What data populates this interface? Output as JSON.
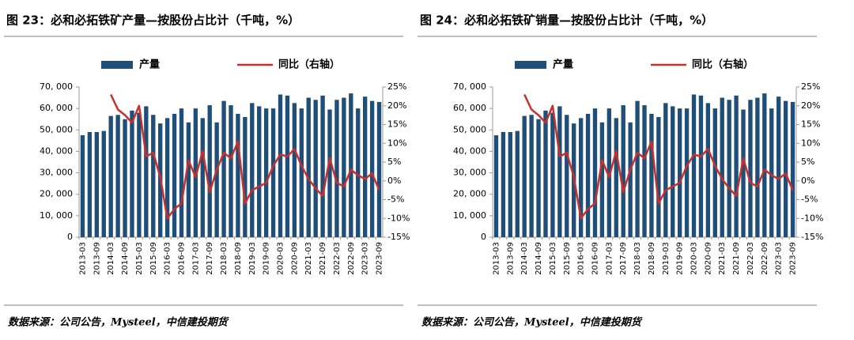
{
  "chart_data": [
    {
      "type": "bar_line",
      "title": "图 23：必和必拓铁矿产量—按股份占比计（千吨，%）",
      "categories": [
        "2013-03",
        null,
        "2013-09",
        null,
        "2014-03",
        null,
        "2014-09",
        null,
        "2015-03",
        null,
        "2015-09",
        null,
        "2016-03",
        null,
        "2016-09",
        null,
        "2017-03",
        null,
        "2017-09",
        null,
        "2018-03",
        null,
        "2018-09",
        null,
        "2019-03",
        null,
        "2019-09",
        null,
        "2020-03",
        null,
        "2020-09",
        null,
        "2021-03",
        null,
        "2021-09",
        null,
        "2022-03",
        null,
        "2022-09",
        null,
        "2023-03",
        null,
        "2023-09"
      ],
      "series": [
        {
          "name": "产量",
          "color": "#1f4e79",
          "values": [
            47500,
            49000,
            49000,
            49500,
            56500,
            57000,
            55000,
            59000,
            58000,
            61000,
            57000,
            53000,
            55500,
            57500,
            60000,
            53500,
            60000,
            55500,
            61500,
            53500,
            63500,
            61500,
            57500,
            56000,
            62500,
            61000,
            60000,
            60000,
            66500,
            66000,
            62500,
            60000,
            65000,
            64000,
            66000,
            59500,
            64000,
            65000,
            67000,
            60000,
            65500,
            63500,
            63000
          ]
        },
        {
          "name": "同比（右轴）",
          "color": "#c8302c",
          "axis": "y2",
          "values": [
            null,
            null,
            null,
            null,
            23,
            19,
            17.5,
            15.5,
            20,
            6.5,
            7.5,
            1,
            -10,
            -7.5,
            -6,
            5.5,
            1,
            8,
            -3,
            3,
            7.5,
            6,
            10.5,
            -6,
            -2.5,
            -1.5,
            -0.5,
            4,
            7,
            6.5,
            8.5,
            4,
            0.5,
            -2,
            -4,
            6,
            -0.5,
            -1.5,
            3,
            1.5,
            0.5,
            2,
            -2.5
          ]
        }
      ],
      "ylim": [
        0,
        70000
      ],
      "yticks": [
        0,
        {
          "value": 10000,
          "label": "10, 000"
        },
        {
          "value": 20000,
          "label": "20, 000"
        },
        {
          "value": 30000,
          "label": "30, 000"
        },
        {
          "value": 40000,
          "label": "40, 000"
        },
        {
          "value": 50000,
          "label": "50, 000"
        },
        {
          "value": 60000,
          "label": "60, 000"
        },
        {
          "value": 70000,
          "label": "70, 000"
        }
      ],
      "y2lim": [
        -15,
        25
      ],
      "y2ticks": [
        {
          "value": -15,
          "label": "-15%"
        },
        {
          "value": -10,
          "label": "-10%"
        },
        {
          "value": -5,
          "label": "-5%"
        },
        {
          "value": 0,
          "label": "0%"
        },
        {
          "value": 5,
          "label": "5%"
        },
        {
          "value": 10,
          "label": "10%"
        },
        {
          "value": 15,
          "label": "15%"
        },
        {
          "value": 20,
          "label": "20%"
        },
        {
          "value": 25,
          "label": "25%"
        }
      ],
      "source": "数据来源：公司公告，Mysteel，中信建投期货"
    },
    {
      "type": "bar_line",
      "title": "图 24：必和必拓铁矿销量—按股份占比计（千吨，%）",
      "categories": [
        "2013-03",
        null,
        "2013-09",
        null,
        "2014-03",
        null,
        "2014-09",
        null,
        "2015-03",
        null,
        "2015-09",
        null,
        "2016-03",
        null,
        "2016-09",
        null,
        "2017-03",
        null,
        "2017-09",
        null,
        "2018-03",
        null,
        "2018-09",
        null,
        "2019-03",
        null,
        "2019-09",
        null,
        "2020-03",
        null,
        "2020-09",
        null,
        "2021-03",
        null,
        "2021-09",
        null,
        "2022-03",
        null,
        "2022-09",
        null,
        "2023-03",
        null,
        "2023-09"
      ],
      "series": [
        {
          "name": "产量",
          "color": "#1f4e79",
          "values": [
            47500,
            49000,
            49000,
            49500,
            56500,
            57000,
            55000,
            59000,
            58000,
            61000,
            57000,
            53000,
            55500,
            57500,
            60000,
            53500,
            60000,
            55500,
            61500,
            53500,
            63500,
            61500,
            57500,
            56000,
            62500,
            61000,
            60000,
            60000,
            66500,
            66000,
            62500,
            60000,
            65000,
            64000,
            66000,
            59500,
            64000,
            65000,
            67000,
            60000,
            65500,
            63500,
            63000
          ]
        },
        {
          "name": "同比（右轴）",
          "color": "#c8302c",
          "axis": "y2",
          "values": [
            null,
            null,
            null,
            null,
            23,
            19,
            17.5,
            15.5,
            20,
            6.5,
            7.5,
            1,
            -10,
            -7.5,
            -6,
            5.5,
            1,
            8,
            -3,
            3,
            7.5,
            6,
            10.5,
            -6,
            -2.5,
            -1.5,
            -0.5,
            4,
            7,
            6.5,
            8.5,
            4,
            0.5,
            -2,
            -4,
            6,
            -0.5,
            -1.5,
            3,
            1.5,
            0.5,
            2,
            -2.5
          ]
        }
      ],
      "ylim": [
        0,
        70000
      ],
      "yticks": [
        0,
        {
          "value": 10000,
          "label": "10, 000"
        },
        {
          "value": 20000,
          "label": "20, 000"
        },
        {
          "value": 30000,
          "label": "30, 000"
        },
        {
          "value": 40000,
          "label": "40, 000"
        },
        {
          "value": 50000,
          "label": "50, 000"
        },
        {
          "value": 60000,
          "label": "60, 000"
        },
        {
          "value": 70000,
          "label": "70, 000"
        }
      ],
      "y2lim": [
        -15,
        25
      ],
      "y2ticks": [
        {
          "value": -15,
          "label": "-15%"
        },
        {
          "value": -10,
          "label": "-10%"
        },
        {
          "value": -5,
          "label": "-5%"
        },
        {
          "value": 0,
          "label": "0%"
        },
        {
          "value": 5,
          "label": "5%"
        },
        {
          "value": 10,
          "label": "10%"
        },
        {
          "value": 15,
          "label": "15%"
        },
        {
          "value": 20,
          "label": "20%"
        },
        {
          "value": 25,
          "label": "25%"
        }
      ],
      "source": "数据来源：公司公告，Mysteel，中信建投期货"
    }
  ]
}
